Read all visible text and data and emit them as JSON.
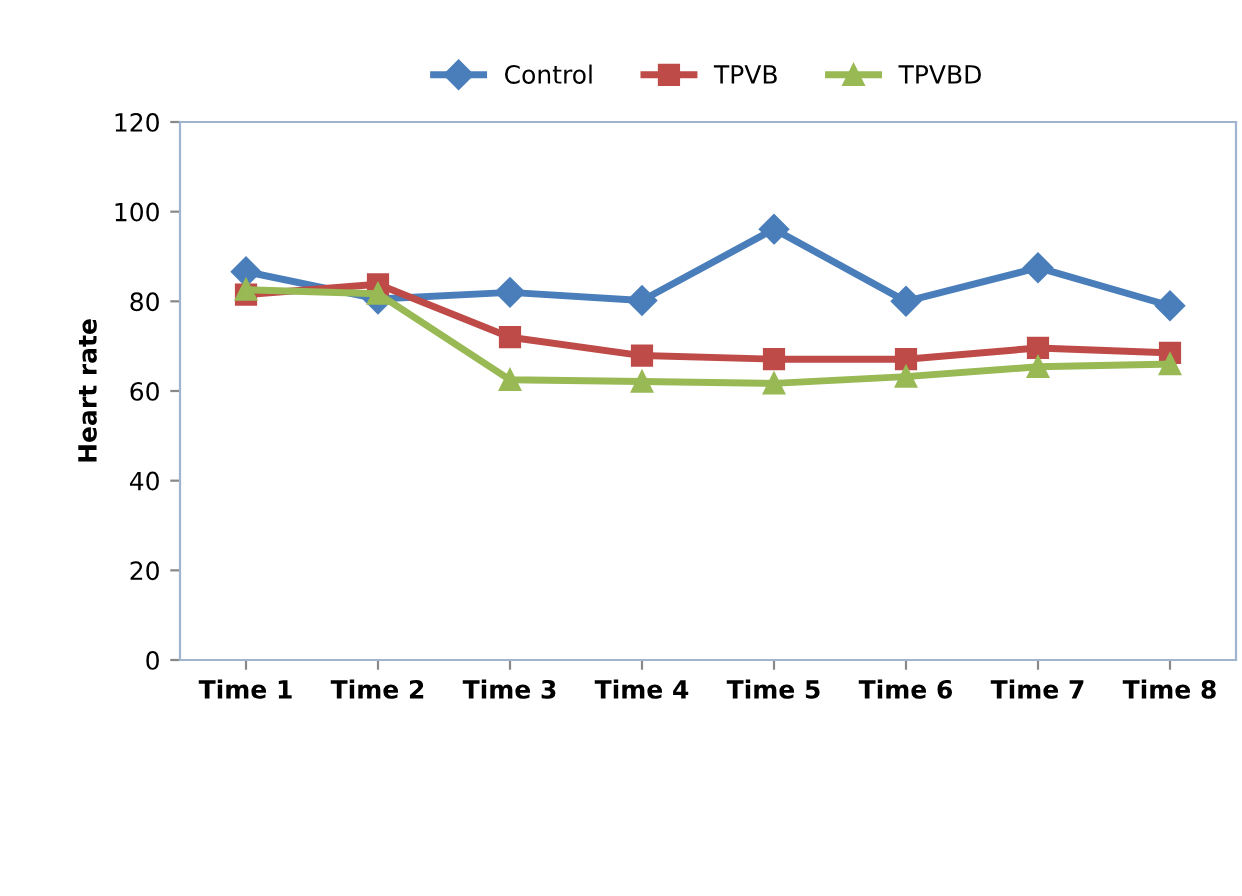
{
  "chart_data": {
    "type": "line",
    "ylabel": "Heart rate",
    "categories": [
      "Time 1",
      "Time 2",
      "Time 3",
      "Time 4",
      "Time 5",
      "Time 6",
      "Time 7",
      "Time 8"
    ],
    "series": [
      {
        "name": "Control",
        "color": "#4a7ebb",
        "marker": "diamond",
        "values": [
          86.6,
          80.5,
          82,
          80.2,
          96.1,
          80,
          87.5,
          79
        ]
      },
      {
        "name": "TPVB",
        "color": "#be4b48",
        "marker": "square",
        "values": [
          81.5,
          83.8,
          72,
          67.9,
          67.1,
          67.1,
          69.6,
          68.5
        ]
      },
      {
        "name": "TPVBD",
        "color": "#98b954",
        "marker": "triangle",
        "values": [
          82.6,
          81.7,
          62.5,
          62.1,
          61.7,
          63.2,
          65.4,
          66
        ]
      }
    ],
    "ylim": [
      0,
      120
    ],
    "yticks": [
      0,
      20,
      40,
      60,
      80,
      100,
      120
    ],
    "grid": false,
    "legend": "top"
  }
}
